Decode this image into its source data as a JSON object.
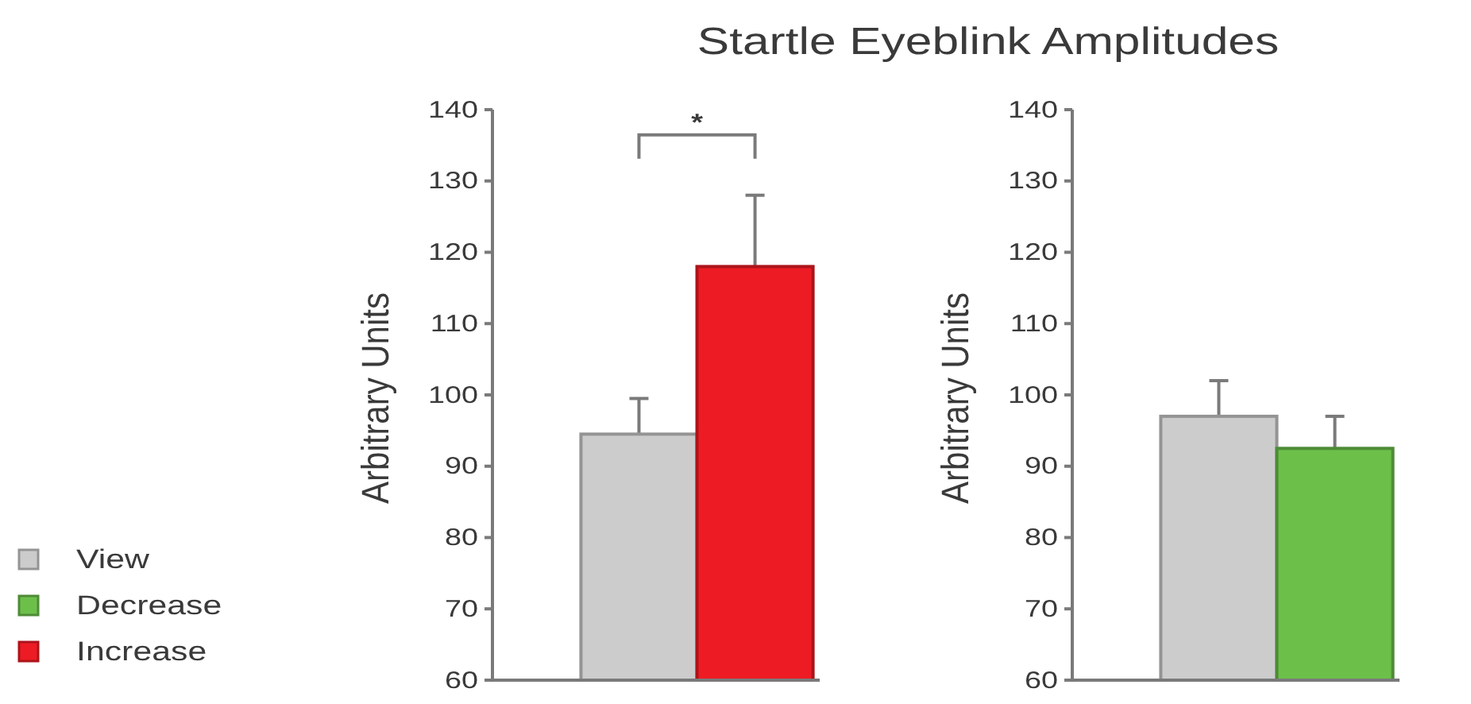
{
  "chart_data": [
    {
      "type": "bar",
      "title": "Startle Eyeblink Amplitudes",
      "ylabel": "Arbitrary Units",
      "categories": [
        null
      ],
      "series": [
        {
          "name": "View",
          "color": "#cccccc",
          "values": [
            94.5
          ],
          "errors": [
            [
              94.5,
              99.5
            ]
          ]
        },
        {
          "name": "Decrease",
          "color": "#6cc04a",
          "values": [
            null
          ]
        },
        {
          "name": "Increase",
          "color": "#ed1c24",
          "values": [
            118
          ],
          "errors": [
            [
              118,
              128
            ]
          ]
        }
      ],
      "ylim": [
        60,
        140
      ],
      "yticks": [
        60,
        70,
        80,
        90,
        100,
        110,
        120,
        130,
        140
      ],
      "legend": "bottom left",
      "annotations": [
        "*"
      ]
    },
    {
      "type": "bar",
      "ylabel": "Arbitrary Units",
      "categories": [
        null
      ],
      "series": [
        {
          "color": "#cccccc",
          "values": [
            97
          ],
          "errors": [
            [
              97,
              102
            ]
          ]
        },
        {
          "color": "#6cc04a",
          "values": [
            92.5
          ],
          "errors": [
            [
              92.5,
              97
            ]
          ]
        }
      ],
      "ylim": [
        60,
        140
      ],
      "yticks": [
        60,
        70,
        80,
        90,
        100,
        110,
        120,
        130,
        140
      ]
    }
  ]
}
